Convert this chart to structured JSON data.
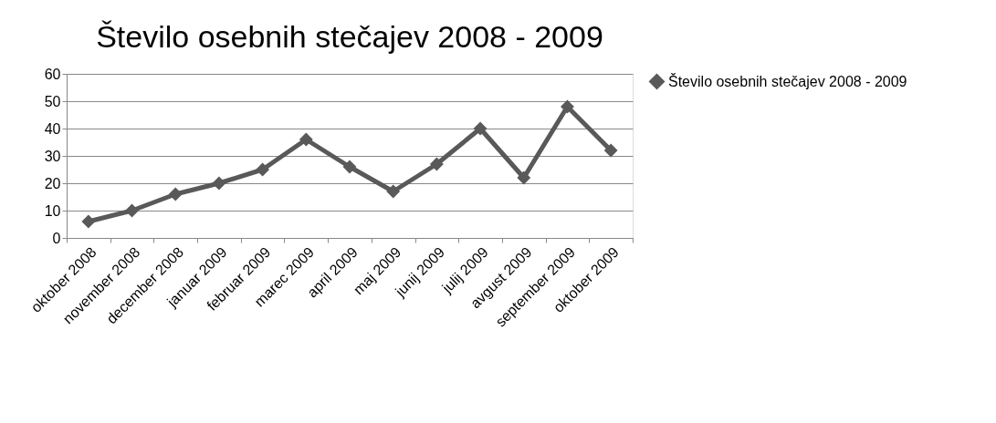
{
  "chart_data": {
    "type": "line",
    "title": "Število osebnih stečajev 2008 - 2009",
    "categories": [
      "oktober 2008",
      "november 2008",
      "december 2008",
      "januar 2009",
      "februar 2009",
      "marec 2009",
      "april 2009",
      "maj 2009",
      "junij 2009",
      "julij 2009",
      "avgust 2009",
      "september 2009",
      "oktober 2009"
    ],
    "series": [
      {
        "name": "Število osebnih stečajev 2008 - 2009",
        "color": "#595959",
        "values": [
          6,
          10,
          16,
          20,
          25,
          36,
          26,
          17,
          27,
          40,
          22,
          48,
          32
        ]
      }
    ],
    "ylim": [
      0,
      60
    ],
    "yticks": [
      0,
      10,
      20,
      30,
      40,
      50,
      60
    ],
    "grid": "y",
    "legend": "right",
    "marker": "diamond",
    "line_style": "solid"
  }
}
